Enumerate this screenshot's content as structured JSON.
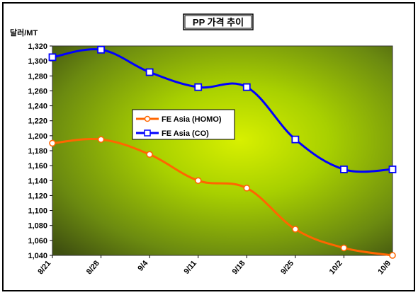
{
  "chart_data": {
    "type": "line",
    "title": "PP 가격 추이",
    "unit_label": "달러/MT",
    "xlabel": "",
    "ylabel": "",
    "categories": [
      "8/21",
      "8/28",
      "9/4",
      "9/11",
      "9/18",
      "9/25",
      "10/2",
      "10/9"
    ],
    "ylim": [
      1040,
      1320
    ],
    "yticks": [
      1040,
      1060,
      1080,
      1100,
      1120,
      1140,
      1160,
      1180,
      1200,
      1220,
      1240,
      1260,
      1280,
      1300,
      1320
    ],
    "y_tick_labels": [
      "1,040",
      "1,060",
      "1,080",
      "1,100",
      "1,120",
      "1,140",
      "1,160",
      "1,180",
      "1,200",
      "1,220",
      "1,240",
      "1,260",
      "1,280",
      "1,300",
      "1,320"
    ],
    "grid": false,
    "legend_position": "center-left",
    "series": [
      {
        "name": "FE Asia (HOMO)",
        "color": "#ff6600",
        "marker": "circle",
        "values": [
          1190,
          1195,
          1175,
          1140,
          1130,
          1075,
          1050,
          1040
        ]
      },
      {
        "name": "FE Asia (CO)",
        "color": "#0000ff",
        "marker": "square",
        "values": [
          1305,
          1315,
          1285,
          1265,
          1265,
          1195,
          1155,
          1155
        ]
      }
    ]
  }
}
